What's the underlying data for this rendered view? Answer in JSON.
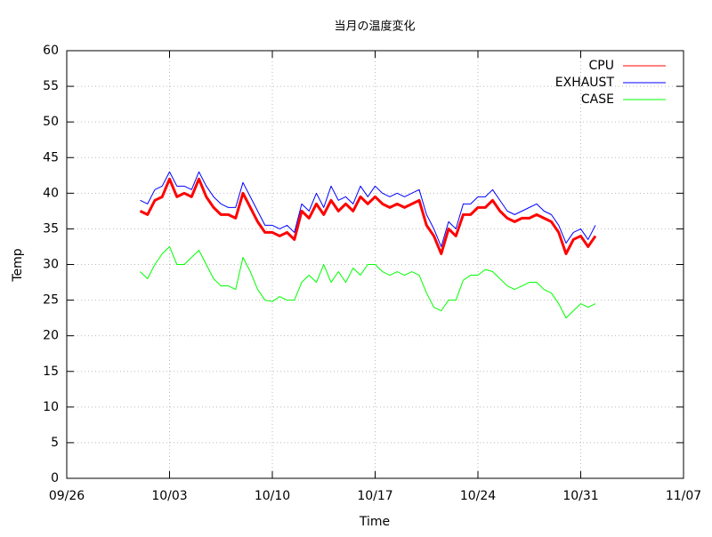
{
  "chart_data": {
    "type": "line",
    "title": "当月の温度変化",
    "xlabel": "Time",
    "ylabel": "Temp",
    "x": [
      5,
      5.5,
      6,
      6.5,
      7,
      7.5,
      8,
      8.5,
      9,
      9.5,
      10,
      10.5,
      11,
      11.5,
      12,
      12.5,
      13,
      13.5,
      14,
      14.5,
      15,
      15.5,
      16,
      16.5,
      17,
      17.5,
      18,
      18.5,
      19,
      19.5,
      20,
      20.5,
      21,
      21.5,
      22,
      22.5,
      23,
      23.5,
      24,
      24.5,
      25,
      25.5,
      26,
      26.5,
      27,
      27.5,
      28,
      28.5,
      29,
      29.5,
      30,
      30.5,
      31,
      31.5,
      32,
      32.5,
      33,
      33.5,
      34,
      34.5,
      35,
      35.5,
      36
    ],
    "series": [
      {
        "name": "CPU",
        "color": "#ff0000",
        "values": [
          37.5,
          37,
          39,
          39.5,
          42,
          39.5,
          40,
          39.5,
          42,
          39.5,
          38,
          37,
          37,
          36.5,
          40,
          38,
          36,
          34.5,
          34.5,
          34,
          34.5,
          33.5,
          37.5,
          36.5,
          38.5,
          37,
          39,
          37.5,
          38.5,
          37.5,
          39.5,
          38.5,
          39.5,
          38.5,
          38,
          38.5,
          38,
          38.5,
          39,
          35.5,
          34,
          31.5,
          35,
          34,
          37,
          37,
          38,
          38,
          39,
          37.5,
          36.5,
          36,
          36.5,
          36.5,
          37,
          36.5,
          36,
          34.5,
          31.5,
          33.5,
          34,
          32.5,
          34
        ]
      },
      {
        "name": "EXHAUST",
        "color": "#0000ff",
        "values": [
          39,
          38.5,
          40.5,
          41,
          43,
          41,
          41,
          40.5,
          43,
          41,
          39.5,
          38.5,
          38,
          38,
          41.5,
          39.5,
          37.5,
          35.5,
          35.5,
          35,
          35.5,
          34.5,
          38.5,
          37.5,
          40,
          38,
          41,
          39,
          39.5,
          38.5,
          41,
          39.5,
          41,
          40,
          39.5,
          40,
          39.5,
          40,
          40.5,
          37,
          35,
          32.5,
          36,
          35,
          38.5,
          38.5,
          39.5,
          39.5,
          40.5,
          39,
          37.5,
          37,
          37.5,
          38,
          38.5,
          37.5,
          37,
          35.5,
          33,
          34.5,
          35,
          33.5,
          35.5
        ]
      },
      {
        "name": "CASE",
        "color": "#00ff00",
        "values": [
          29,
          28,
          30,
          31.5,
          32.5,
          30,
          30,
          31,
          32,
          30,
          28,
          27,
          27,
          26.5,
          31,
          29,
          26.5,
          25,
          24.8,
          25.5,
          25,
          25,
          27.5,
          28.5,
          27.5,
          30,
          27.5,
          29,
          27.5,
          29.5,
          28.5,
          30,
          30,
          29,
          28.5,
          29,
          28.5,
          29,
          28.5,
          26,
          24,
          23.5,
          25,
          25,
          27.8,
          28.5,
          28.5,
          29.3,
          29,
          28,
          27,
          26.5,
          27,
          27.5,
          27.5,
          26.5,
          26,
          24.5,
          22.5,
          23.5,
          24.5,
          24,
          24.5
        ]
      }
    ],
    "xlim": [
      0,
      42
    ],
    "xticks": [
      {
        "value": 0,
        "label": "09/26"
      },
      {
        "value": 7,
        "label": "10/03"
      },
      {
        "value": 14,
        "label": "10/10"
      },
      {
        "value": 21,
        "label": "10/17"
      },
      {
        "value": 28,
        "label": "10/24"
      },
      {
        "value": 35,
        "label": "10/31"
      },
      {
        "value": 42,
        "label": "11/07"
      }
    ],
    "ylim": [
      0,
      60
    ],
    "yticks": [
      0,
      5,
      10,
      15,
      20,
      25,
      30,
      35,
      40,
      45,
      50,
      55,
      60
    ],
    "grid": true,
    "legend": "top-right"
  }
}
